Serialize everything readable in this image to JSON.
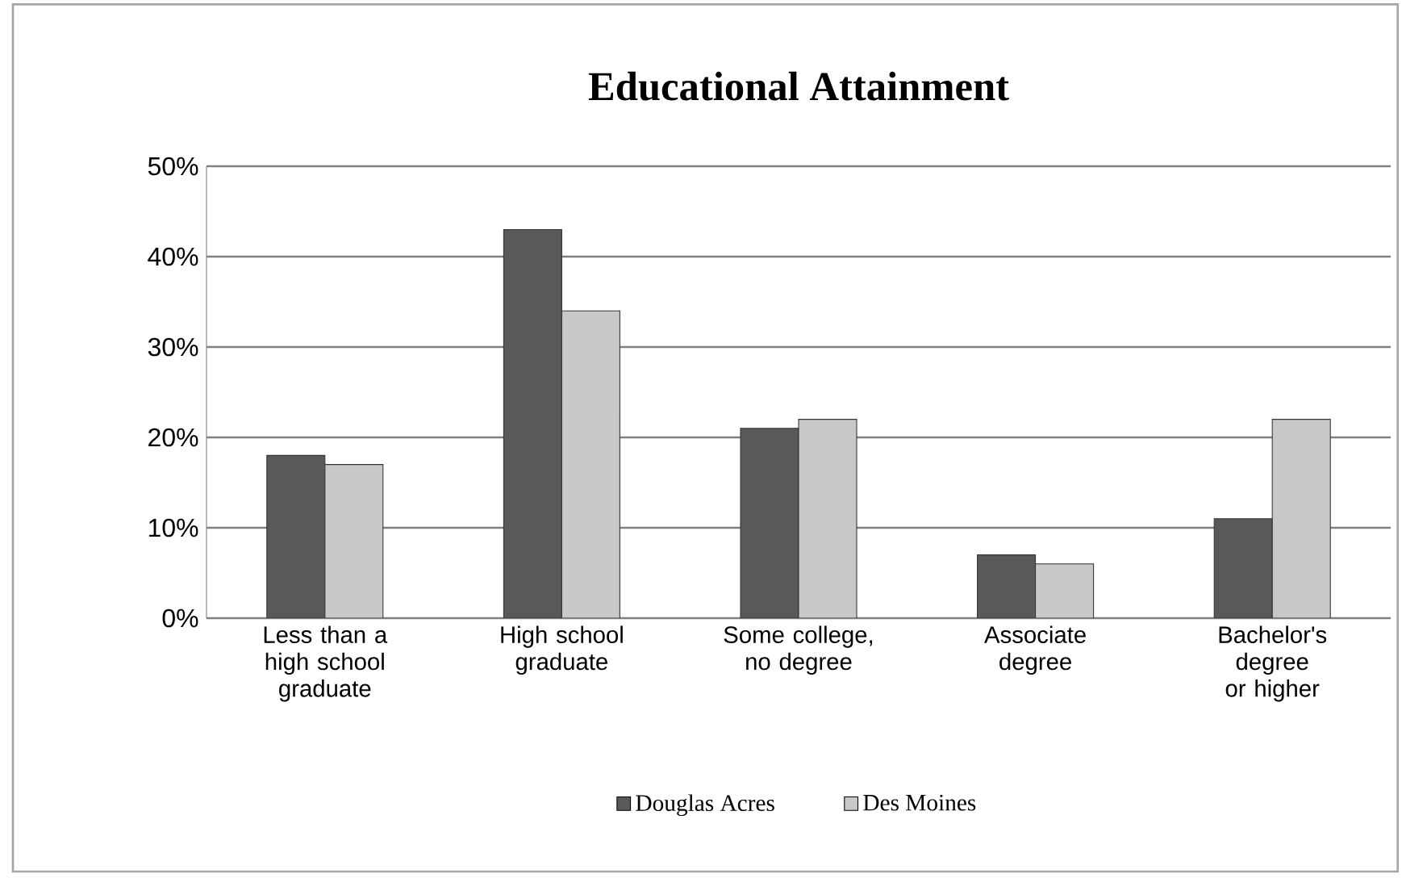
{
  "chart_data": {
    "type": "bar",
    "title": "Educational Attainment",
    "categories": [
      "Less than a high school graduate",
      "High school graduate",
      "Some college, no degree",
      "Associate degree",
      "Bachelor's degree or higher"
    ],
    "series": [
      {
        "name": "Douglas Acres",
        "color": "#595959",
        "values": [
          18,
          43,
          21,
          7,
          11
        ]
      },
      {
        "name": "Des Moines",
        "color": "#c8c8c8",
        "values": [
          17,
          34,
          22,
          6,
          22
        ]
      }
    ],
    "ylim": [
      0,
      50
    ],
    "yticks": [
      {
        "value": 0,
        "label": "0%"
      },
      {
        "value": 10,
        "label": "10%"
      },
      {
        "value": 20,
        "label": "20%"
      },
      {
        "value": 30,
        "label": "30%"
      },
      {
        "value": 40,
        "label": "40%"
      },
      {
        "value": 50,
        "label": "50%"
      }
    ],
    "grid": "y",
    "legend": "bottom"
  }
}
